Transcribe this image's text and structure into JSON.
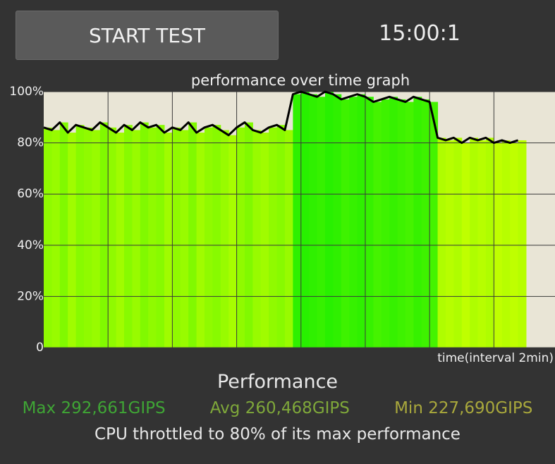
{
  "button": {
    "label": "START TEST"
  },
  "timer": "15:00:1",
  "chart_data": {
    "type": "area",
    "title": "performance over time graph",
    "x_label": "time(interval 2min)",
    "x": [
      0,
      0.25,
      0.5,
      0.75,
      1,
      1.25,
      1.5,
      1.75,
      2,
      2.25,
      2.5,
      2.75,
      3,
      3.25,
      3.5,
      3.75,
      4,
      4.25,
      4.5,
      4.75,
      5,
      5.25,
      5.5,
      5.75,
      6,
      6.25,
      6.5,
      6.75,
      7,
      7.25,
      7.5,
      7.75,
      8,
      8.25,
      8.5,
      8.75,
      9,
      9.25,
      9.5,
      9.75,
      10,
      10.25,
      10.5,
      10.75,
      11,
      11.25,
      11.5,
      11.75,
      12,
      12.25,
      12.5,
      12.75,
      13,
      13.25,
      13.5,
      13.75,
      14,
      14.25,
      14.5,
      14.75
    ],
    "values": [
      86,
      85,
      88,
      84,
      87,
      86,
      85,
      88,
      86,
      84,
      87,
      85,
      88,
      86,
      87,
      84,
      86,
      85,
      88,
      84,
      86,
      87,
      85,
      83,
      86,
      88,
      85,
      84,
      86,
      87,
      85,
      99,
      100,
      99,
      98,
      100,
      99,
      97,
      98,
      99,
      98,
      96,
      97,
      98,
      97,
      96,
      98,
      97,
      96,
      82,
      81,
      82,
      80,
      82,
      81,
      82,
      80,
      81,
      80,
      81
    ],
    "line_color": "#000000",
    "xlim": [
      0,
      15.9
    ],
    "xticks": [
      2,
      4,
      6,
      8,
      10,
      12,
      14
    ],
    "ylim": [
      0,
      100
    ],
    "yticks": [
      0,
      {
        "value": 20,
        "label": "20%"
      },
      {
        "value": 40,
        "label": "40%"
      },
      {
        "value": 60,
        "label": "60%"
      },
      {
        "value": 80,
        "label": "80%"
      },
      {
        "value": 100,
        "label": "100%"
      }
    ],
    "grid": true
  },
  "stats": {
    "heading": "Performance",
    "max": "Max 292,661GIPS",
    "avg": "Avg 260,468GIPS",
    "min": "Min 227,690GIPS"
  },
  "footer": "CPU throttled to 80% of its max performance"
}
